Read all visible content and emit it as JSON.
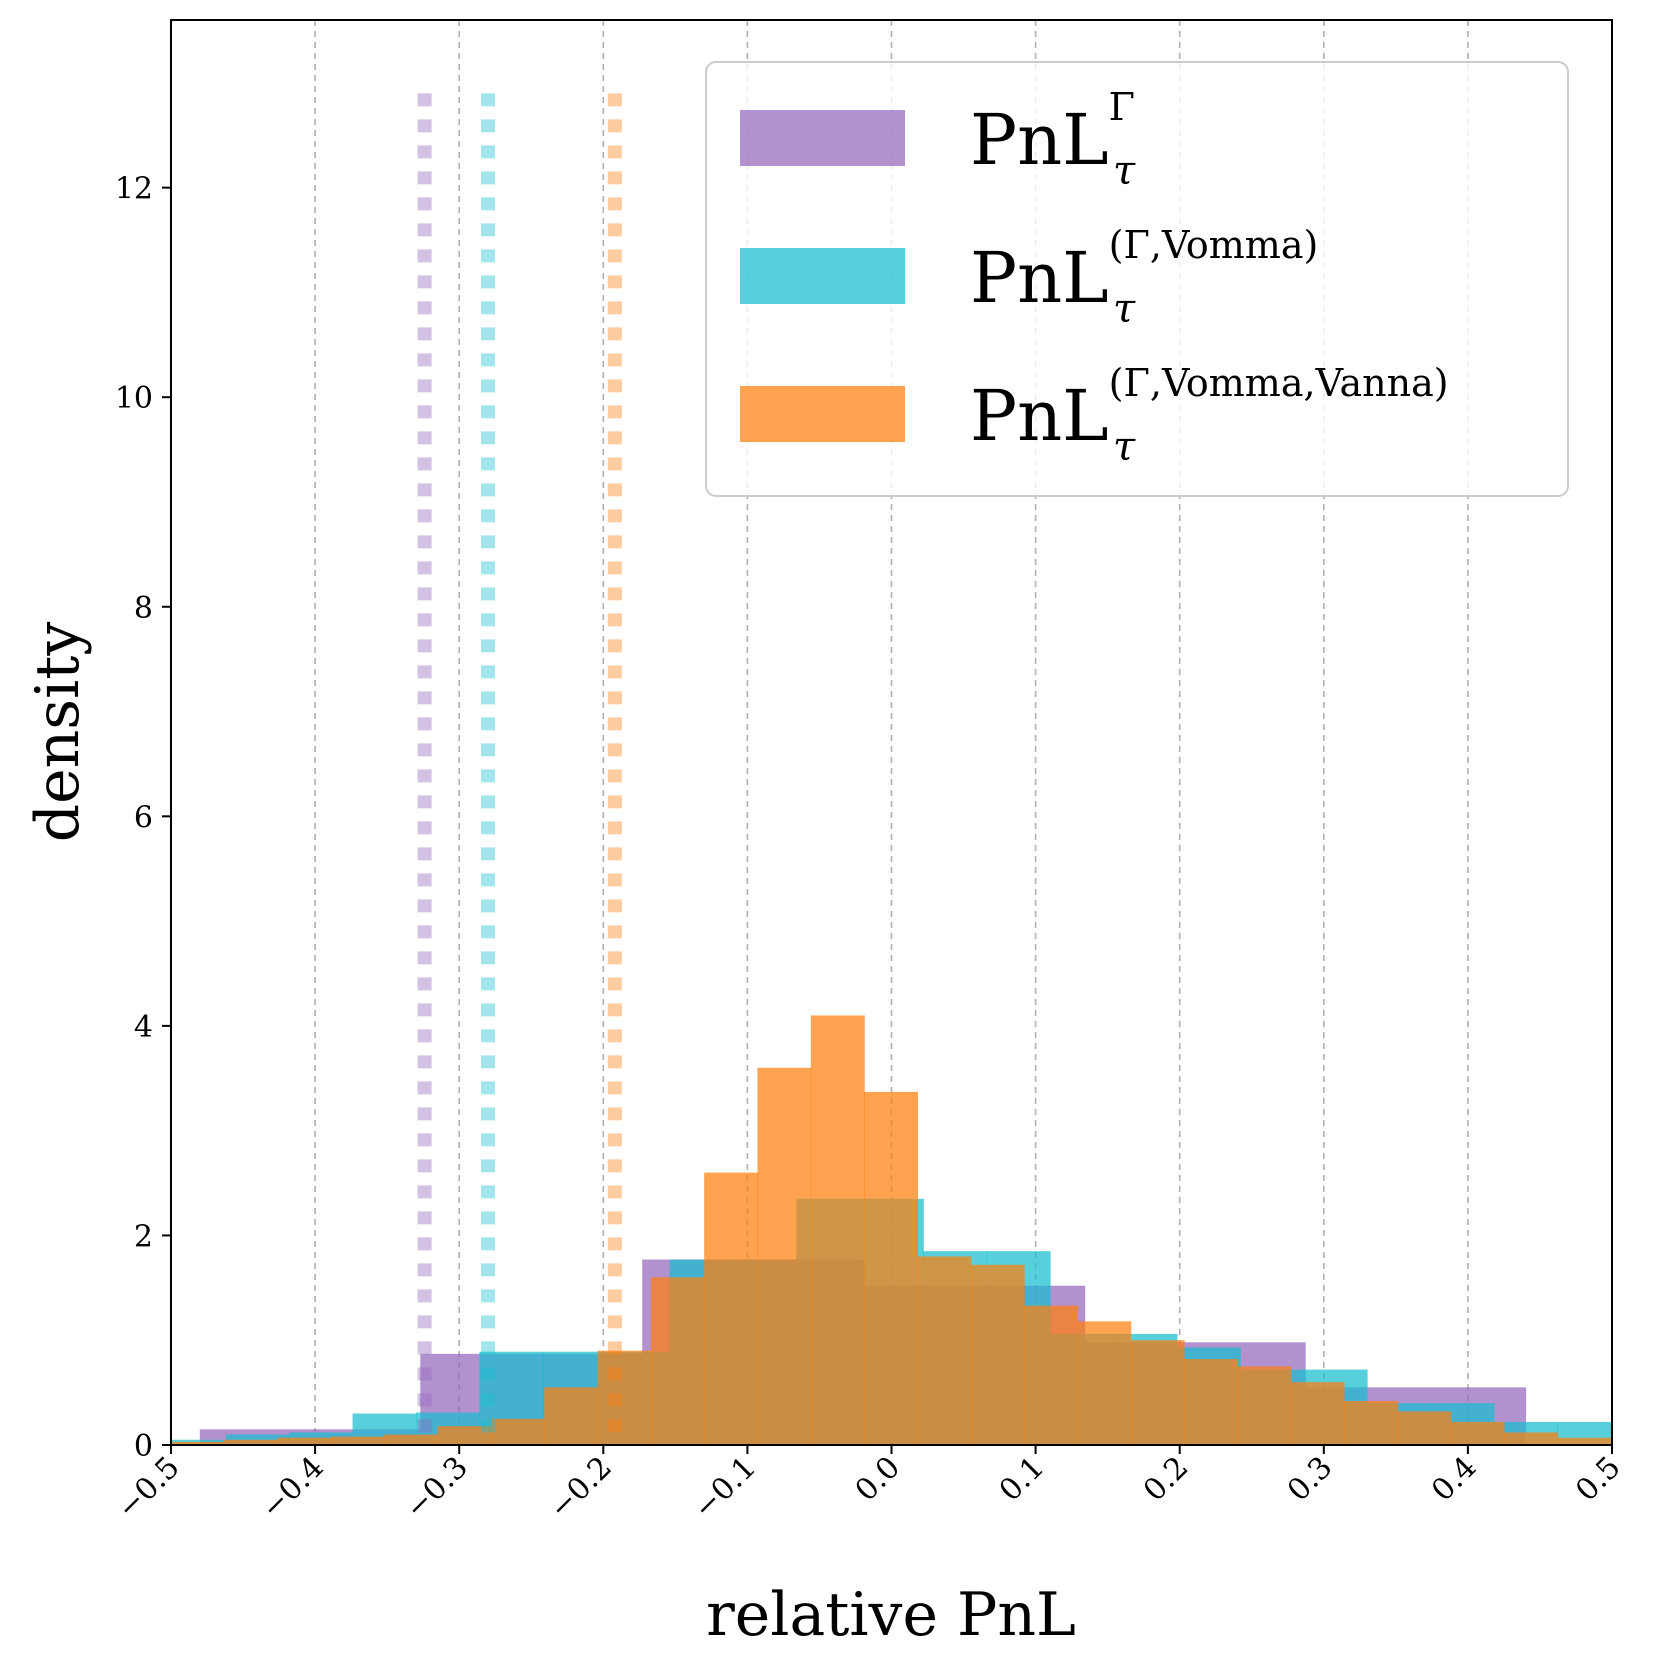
{
  "chart_data": {
    "type": "histogram",
    "title": "",
    "xlabel": "relative PnL",
    "ylabel": "density",
    "xlim": [
      -0.5,
      0.5
    ],
    "ylim": [
      0,
      13.6
    ],
    "xticks": [
      -0.5,
      -0.4,
      -0.3,
      -0.2,
      -0.1,
      0.0,
      0.1,
      0.2,
      0.3,
      0.4,
      0.5
    ],
    "xtick_labels": [
      "−0.5",
      "−0.4",
      "−0.3",
      "−0.2",
      "−0.1",
      "0.0",
      "0.1",
      "0.2",
      "0.3",
      "0.4",
      "0.5"
    ],
    "yticks": [
      0,
      2,
      4,
      6,
      8,
      10,
      12
    ],
    "ytick_labels": [
      "0",
      "2",
      "4",
      "6",
      "8",
      "10",
      "12"
    ],
    "grid": "x-dashed",
    "legend_position": "top-right",
    "series": [
      {
        "name": "PnL_tau^Gamma",
        "label_main": "PnL",
        "label_sub": "τ",
        "label_sup": "Γ",
        "color": "#9467bd",
        "vline_x": -0.324,
        "bins": [
          [
            -0.48,
            -0.327,
            0.15
          ],
          [
            -0.327,
            -0.173,
            0.87
          ],
          [
            -0.173,
            -0.019,
            1.77
          ],
          [
            -0.019,
            0.134,
            1.52
          ],
          [
            0.134,
            0.287,
            0.98
          ],
          [
            0.287,
            0.44,
            0.55
          ]
        ]
      },
      {
        "name": "PnL_tau^(Gamma,Vomma)",
        "label_main": "PnL",
        "label_sub": "τ",
        "label_sup": "(Γ,Vomma)",
        "color": "#17becf",
        "vline_x": -0.28,
        "bins": [
          [
            -0.5,
            -0.462,
            0.05
          ],
          [
            -0.462,
            -0.418,
            0.1
          ],
          [
            -0.418,
            -0.374,
            0.12
          ],
          [
            -0.374,
            -0.33,
            0.3
          ],
          [
            -0.33,
            -0.286,
            0.31
          ],
          [
            -0.286,
            -0.242,
            0.89
          ],
          [
            -0.242,
            -0.198,
            0.89
          ],
          [
            -0.198,
            -0.154,
            0.89
          ],
          [
            -0.154,
            -0.11,
            1.77
          ],
          [
            -0.11,
            -0.066,
            1.77
          ],
          [
            -0.066,
            -0.022,
            2.35
          ],
          [
            -0.022,
            0.022,
            2.35
          ],
          [
            0.022,
            0.066,
            1.85
          ],
          [
            0.066,
            0.11,
            1.85
          ],
          [
            0.11,
            0.154,
            1.06
          ],
          [
            0.154,
            0.198,
            1.06
          ],
          [
            0.198,
            0.242,
            0.93
          ],
          [
            0.242,
            0.286,
            0.72
          ],
          [
            0.286,
            0.33,
            0.72
          ],
          [
            0.33,
            0.374,
            0.4
          ],
          [
            0.374,
            0.418,
            0.4
          ],
          [
            0.418,
            0.462,
            0.22
          ],
          [
            0.462,
            0.5,
            0.22
          ]
        ]
      },
      {
        "name": "PnL_tau^(Gamma,Vomma,Vanna)",
        "label_main": "PnL",
        "label_sub": "τ",
        "label_sup": "(Γ,Vomma,Vanna)",
        "color": "#ff7f0e",
        "vline_x": -0.192,
        "bins": [
          [
            -0.5,
            -0.463,
            0.03
          ],
          [
            -0.463,
            -0.426,
            0.05
          ],
          [
            -0.426,
            -0.389,
            0.07
          ],
          [
            -0.389,
            -0.352,
            0.08
          ],
          [
            -0.352,
            -0.315,
            0.1
          ],
          [
            -0.315,
            -0.278,
            0.18
          ],
          [
            -0.278,
            -0.241,
            0.25
          ],
          [
            -0.241,
            -0.204,
            0.55
          ],
          [
            -0.204,
            -0.167,
            0.9
          ],
          [
            -0.167,
            -0.13,
            1.6
          ],
          [
            -0.13,
            -0.093,
            2.6
          ],
          [
            -0.093,
            -0.056,
            3.6
          ],
          [
            -0.056,
            -0.019,
            4.1
          ],
          [
            -0.019,
            0.018,
            3.37
          ],
          [
            0.018,
            0.055,
            1.8
          ],
          [
            0.055,
            0.092,
            1.72
          ],
          [
            0.092,
            0.129,
            1.33
          ],
          [
            0.129,
            0.166,
            1.18
          ],
          [
            0.166,
            0.203,
            1.0
          ],
          [
            0.203,
            0.24,
            0.82
          ],
          [
            0.24,
            0.277,
            0.75
          ],
          [
            0.277,
            0.314,
            0.6
          ],
          [
            0.314,
            0.351,
            0.42
          ],
          [
            0.351,
            0.388,
            0.32
          ],
          [
            0.388,
            0.425,
            0.22
          ],
          [
            0.425,
            0.462,
            0.12
          ],
          [
            0.462,
            0.5,
            0.07
          ]
        ]
      }
    ]
  }
}
